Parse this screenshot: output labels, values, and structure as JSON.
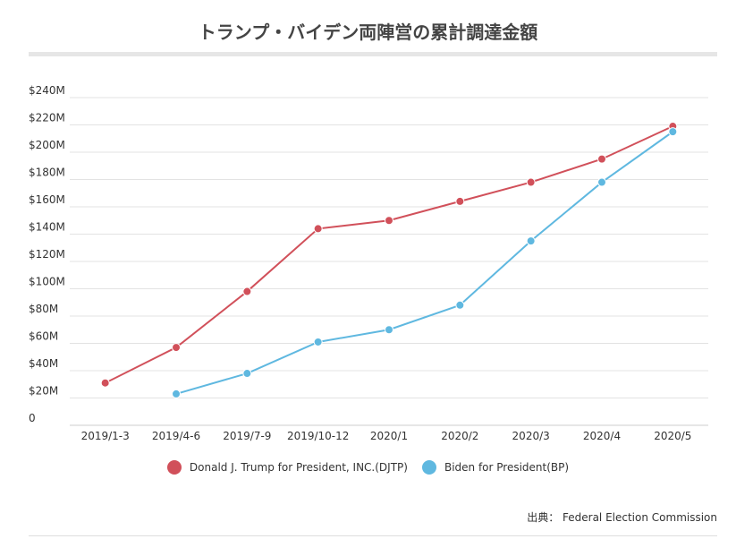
{
  "chart_data": {
    "type": "line",
    "title": "トランプ・バイデン両陣営の累計調達金額",
    "categories": [
      "2019/1-3",
      "2019/4-6",
      "2019/7-9",
      "2019/10-12",
      "2020/1",
      "2020/2",
      "2020/3",
      "2020/4",
      "2020/5"
    ],
    "y_ticks": [
      "0",
      "$20M",
      "$40M",
      "$60M",
      "$80M",
      "$100M",
      "$120M",
      "$140M",
      "$160M",
      "$180M",
      "$200M",
      "$220M",
      "$240M"
    ],
    "ylim": [
      0,
      240
    ],
    "y_unit": "M USD",
    "grid": true,
    "legend_position": "bottom",
    "series": [
      {
        "name": "Donald J. Trump for President, INC.(DJTP)",
        "color": "#d1505a",
        "values": [
          31,
          57,
          98,
          144,
          150,
          164,
          178,
          195,
          219
        ]
      },
      {
        "name": "Biden for President(BP)",
        "color": "#5fb8e0",
        "values": [
          null,
          23,
          38,
          61,
          70,
          88,
          135,
          178,
          215
        ]
      }
    ],
    "source": "出典： Federal Election Commission"
  }
}
